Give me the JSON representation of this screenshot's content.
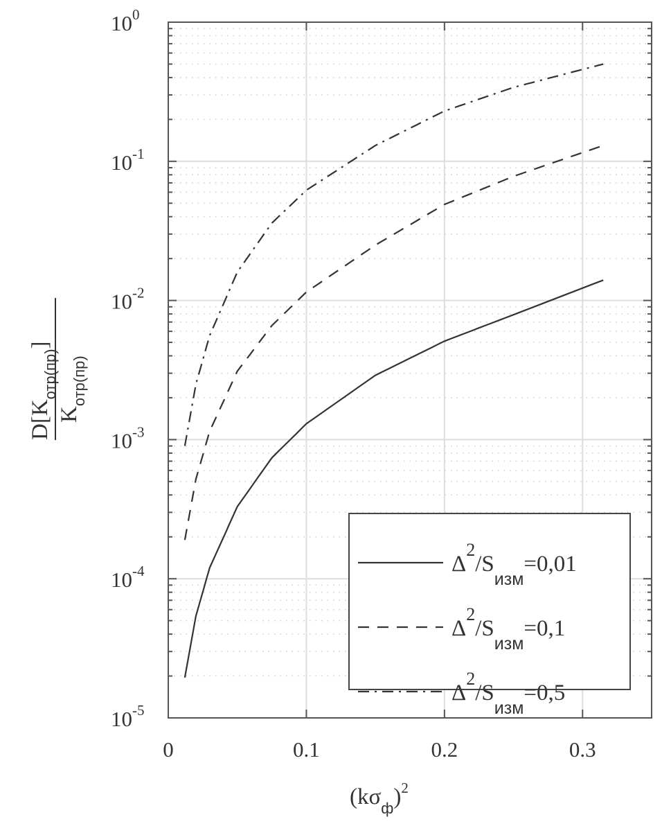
{
  "chart_data": {
    "type": "line",
    "title": "",
    "xlabel": {
      "base": "(kσ",
      "sub": "ф",
      "close": ")",
      "sup": "2"
    },
    "ylabel": {
      "numerator": {
        "pre": "D[K",
        "sub": "отр(пр)",
        "post": "]"
      },
      "denominator": {
        "pre": "K",
        "sub": "отр(пр)"
      }
    },
    "xlim": [
      0,
      0.35
    ],
    "ylim": [
      1e-05,
      1
    ],
    "yscale": "log",
    "grid": true,
    "minor_grid": true,
    "x_ticks": [
      "0",
      "0.1",
      "0.2",
      "0.3"
    ],
    "x_tick_values": [
      0,
      0.1,
      0.2,
      0.3
    ],
    "y_ticks": [
      {
        "base": "10",
        "exp": "0",
        "value": 1
      },
      {
        "base": "10",
        "exp": "-1",
        "value": 0.1
      },
      {
        "base": "10",
        "exp": "-2",
        "value": 0.01
      },
      {
        "base": "10",
        "exp": "-3",
        "value": 0.001
      },
      {
        "base": "10",
        "exp": "-4",
        "value": 0.0001
      },
      {
        "base": "10",
        "exp": "-5",
        "value": 1e-05
      }
    ],
    "legend_position": "bottom-right",
    "x": [
      0.012,
      0.02,
      0.03,
      0.05,
      0.075,
      0.1,
      0.15,
      0.2,
      0.25,
      0.315
    ],
    "series": [
      {
        "name": "Δ2/Sизм=0,01",
        "label": {
          "pre": "Δ",
          "sup": "2",
          "mid": "/S",
          "sub": "изм",
          "post": "=0,01"
        },
        "style": "solid",
        "values": [
          1.95e-05,
          5.4e-05,
          0.00012,
          0.00033,
          0.00074,
          0.0013,
          0.0029,
          0.0051,
          0.0079,
          0.014
        ]
      },
      {
        "name": "Δ2/Sизм=0,1",
        "label": {
          "pre": "Δ",
          "sup": "2",
          "mid": "/S",
          "sub": "изм",
          "post": "=0,1"
        },
        "style": "dashed",
        "values": [
          0.00019,
          0.00052,
          0.00115,
          0.0031,
          0.0066,
          0.0115,
          0.025,
          0.049,
          0.078,
          0.13
        ]
      },
      {
        "name": "Δ2/Sизм=0,5",
        "label": {
          "pre": "Δ",
          "sup": "2",
          "mid": "/S",
          "sub": "изм",
          "post": "=0,5"
        },
        "style": "dashdot",
        "values": [
          0.0009,
          0.0025,
          0.0056,
          0.016,
          0.036,
          0.062,
          0.13,
          0.23,
          0.34,
          0.5
        ]
      }
    ],
    "colors": {
      "line": "#333333",
      "grid": "#dddddd",
      "axis": "#555555"
    }
  }
}
